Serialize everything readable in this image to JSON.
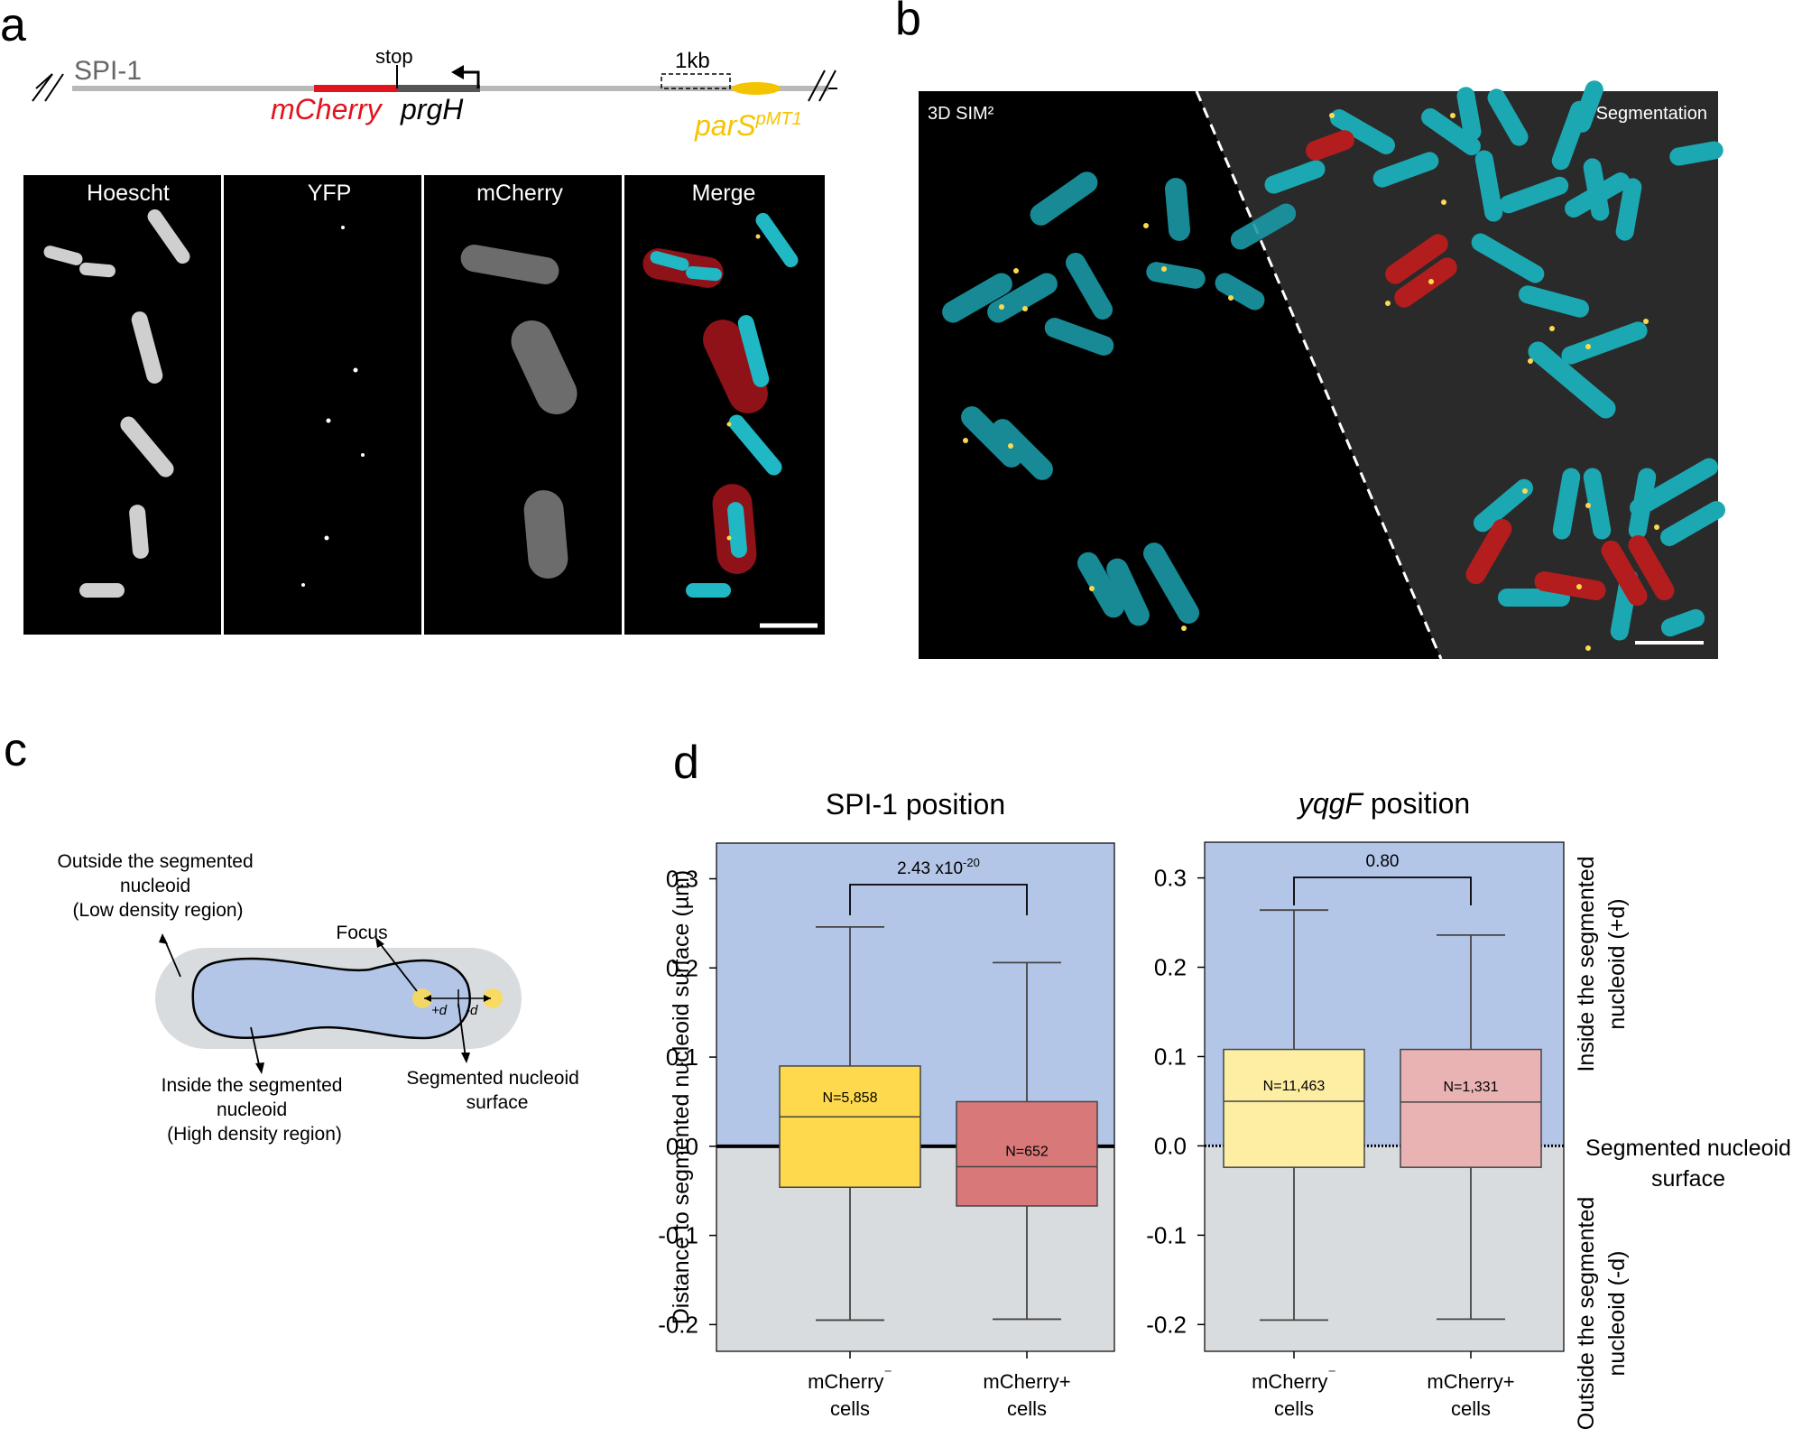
{
  "panels": {
    "a": "a",
    "b": "b",
    "c": "c",
    "d": "d"
  },
  "panel_a": {
    "region": "SPI-1",
    "stop": "stop",
    "mcherry": "mCherry",
    "prgh": "prgH",
    "scale": "1kb",
    "pars_base": "parS",
    "pars_sup": "pMT1",
    "channels": [
      "Hoescht",
      "YFP",
      "mCherry",
      "Merge"
    ]
  },
  "panel_b": {
    "left_label": "3D SIM²",
    "right_label": "Segmentation"
  },
  "panel_c": {
    "outside_lines": [
      "Outside the segmented",
      "nucleoid",
      "(Low density region)"
    ],
    "focus": "Focus",
    "plus_d": "+d",
    "minus_d": "-d",
    "inside_lines": [
      "Inside the segmented",
      "nucleoid",
      "(High density region)"
    ],
    "surface_lines": [
      "Segmented nucleoid",
      "surface"
    ]
  },
  "colors": {
    "inside_region": "#b3c6e8",
    "outside_region": "#d9dcdf",
    "yellow": "#fed94d",
    "yellow_light": "#fdeea3",
    "red": "#d97878",
    "red_light": "#e9b3b3",
    "cyan": "#1fb8c4",
    "mcherry_red": "#e1141e",
    "pars_yellow": "#f5c400"
  },
  "chart_data": [
    {
      "type": "box",
      "title": "SPI-1 position",
      "ylabel": "Distance to segmented nucleoid surface (µm)",
      "ylim": [
        -0.23,
        0.34
      ],
      "yticks": [
        "0.3",
        "0.2",
        "0.1",
        "0.0",
        "-0.1",
        "-0.2"
      ],
      "categories": [
        [
          "mCherry",
          "⁻",
          "cells"
        ],
        [
          "mCherry+",
          "",
          "cells"
        ]
      ],
      "boxes": [
        {
          "q1": -0.046,
          "median": 0.033,
          "q3": 0.09,
          "whisker_low": -0.195,
          "whisker_high": 0.246,
          "n": "N=5,858",
          "color": "#fed94d"
        },
        {
          "q1": -0.067,
          "median": -0.023,
          "q3": 0.05,
          "whisker_low": -0.194,
          "whisker_high": 0.206,
          "n": "N=652",
          "color": "#d97878"
        }
      ],
      "pvalue_base": "2.43 x10",
      "pvalue_exp": "-20"
    },
    {
      "type": "box",
      "title_italic": "yqgF",
      "title_rest": " position",
      "ylim": [
        -0.23,
        0.34
      ],
      "yticks": [
        "0.3",
        "0.2",
        "0.1",
        "0.0",
        "-0.1",
        "-0.2"
      ],
      "categories": [
        [
          "mCherry",
          "⁻",
          "cells"
        ],
        [
          "mCherry+",
          "",
          "cells"
        ]
      ],
      "boxes": [
        {
          "q1": -0.024,
          "median": 0.05,
          "q3": 0.108,
          "whisker_low": -0.195,
          "whisker_high": 0.264,
          "n": "N=11,463",
          "color": "#fdeea3"
        },
        {
          "q1": -0.024,
          "median": 0.049,
          "q3": 0.108,
          "whisker_low": -0.194,
          "whisker_high": 0.236,
          "n": "N=1,331",
          "color": "#e9b3b3"
        }
      ],
      "pvalue": "0.80",
      "right_labels": {
        "inside": [
          "Inside the segmented",
          "nucleoid (+d)"
        ],
        "surface": [
          "Segmented nucleoid",
          "surface"
        ],
        "outside": [
          "Outside  the segmented",
          "nucleoid (-d)"
        ]
      }
    }
  ]
}
